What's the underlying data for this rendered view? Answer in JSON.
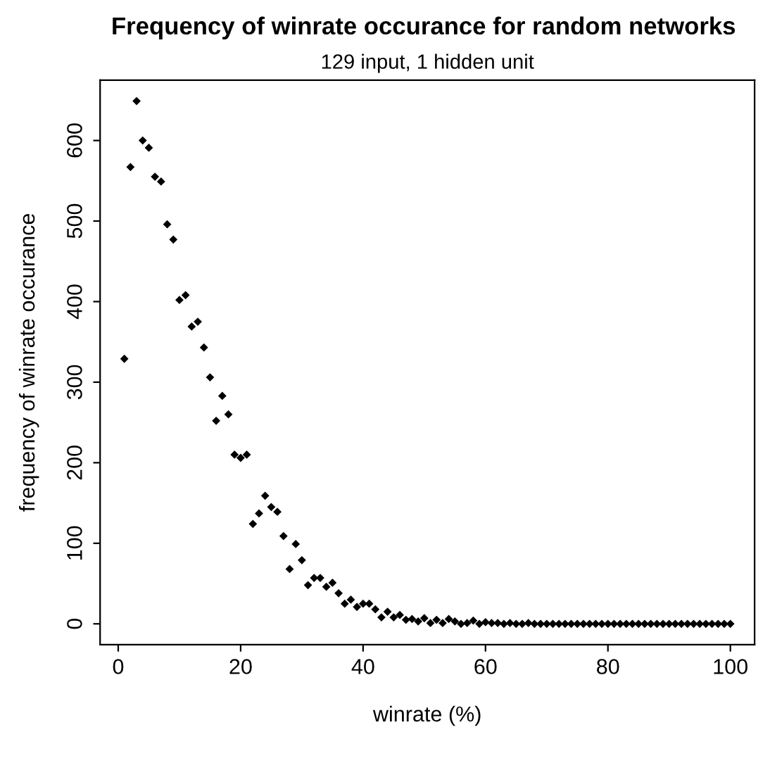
{
  "chart_data": {
    "type": "scatter",
    "title": "Frequency of winrate occurance for random networks",
    "subtitle": "129 input, 1 hidden unit",
    "xlabel": "winrate (%)",
    "ylabel": "frequency of winrate occurance",
    "x": [
      1,
      2,
      3,
      4,
      5,
      6,
      7,
      8,
      9,
      10,
      11,
      12,
      13,
      14,
      15,
      16,
      17,
      18,
      19,
      20,
      21,
      22,
      23,
      24,
      25,
      26,
      27,
      28,
      29,
      30,
      31,
      32,
      33,
      34,
      35,
      36,
      37,
      38,
      39,
      40,
      41,
      42,
      43,
      44,
      45,
      46,
      47,
      48,
      49,
      50,
      51,
      52,
      53,
      54,
      55,
      56,
      57,
      58,
      59,
      60,
      61,
      62,
      63,
      64,
      65,
      66,
      67,
      68,
      69,
      70,
      71,
      72,
      73,
      74,
      75,
      76,
      77,
      78,
      79,
      80,
      81,
      82,
      83,
      84,
      85,
      86,
      87,
      88,
      89,
      90,
      91,
      92,
      93,
      94,
      95,
      96,
      97,
      98,
      99,
      100
    ],
    "series": [
      {
        "color": "#000000",
        "values": [
          329,
          567,
          649,
          600,
          591,
          555,
          549,
          496,
          477,
          402,
          408,
          369,
          375,
          343,
          306,
          252,
          283,
          260,
          210,
          206,
          210,
          124,
          137,
          159,
          145,
          139,
          109,
          68,
          99,
          79,
          48,
          57,
          57,
          46,
          51,
          38,
          25,
          30,
          21,
          25,
          25,
          18,
          8,
          15,
          8,
          11,
          5,
          6,
          3,
          7,
          1,
          5,
          1,
          6,
          3,
          0,
          1,
          4,
          0,
          2,
          1,
          1,
          0,
          1,
          0,
          0,
          1,
          0,
          0,
          0,
          0,
          0,
          0,
          0,
          0,
          0,
          0,
          0,
          0,
          0,
          0,
          0,
          0,
          0,
          0,
          0,
          0,
          0,
          0,
          0,
          0,
          0,
          0,
          0,
          0,
          0,
          0,
          0,
          0,
          0
        ]
      }
    ],
    "xlim": [
      -2.96,
      103.96
    ],
    "ylim": [
      -25.96,
      674.96
    ],
    "xticks": [
      0,
      20,
      40,
      60,
      80,
      100
    ],
    "yticks": [
      0,
      100,
      200,
      300,
      400,
      500,
      600
    ],
    "marker": "diamond",
    "grid": false,
    "legend": false
  }
}
